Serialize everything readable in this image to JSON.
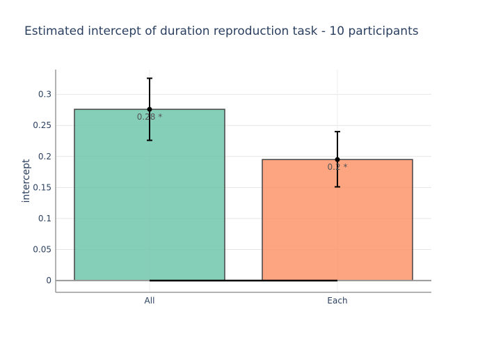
{
  "chart_data": {
    "type": "bar",
    "title": "Estimated intercept of duration reproduction task - 10 participants",
    "xlabel": "",
    "ylabel": "intercept",
    "categories": [
      "All",
      "Each"
    ],
    "values": [
      0.276,
      0.195
    ],
    "error_bars": [
      {
        "low": 0.226,
        "high": 0.326
      },
      {
        "low": 0.151,
        "high": 0.24
      }
    ],
    "data_labels": [
      "0.28 *",
      "0.2 *"
    ],
    "colors": [
      "#66c2a5",
      "#fc8d62"
    ],
    "ylim": [
      -0.019,
      0.34
    ],
    "yticks": [
      0,
      0.05,
      0.1,
      0.15,
      0.2,
      0.25,
      0.3
    ],
    "ytick_labels": [
      "0",
      "0.05",
      "0.1",
      "0.15",
      "0.2",
      "0.25",
      "0.3"
    ],
    "grid": true,
    "legend": "none"
  }
}
